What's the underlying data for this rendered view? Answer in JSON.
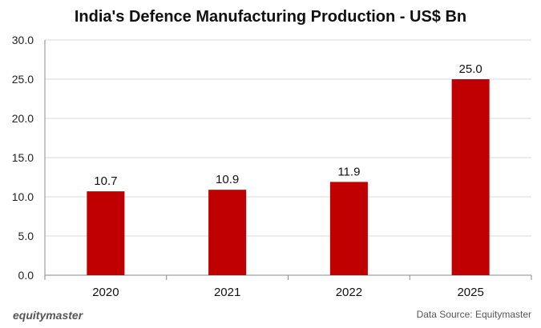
{
  "chart_data": {
    "type": "bar",
    "title": "India's Defence Manufacturing Production - US$ Bn",
    "categories": [
      "2020",
      "2021",
      "2022",
      "2025"
    ],
    "values": [
      10.7,
      10.9,
      11.9,
      25.0
    ],
    "data_labels": [
      "10.7",
      "10.9",
      "11.9",
      "25.0"
    ],
    "y_ticks": [
      "0.0",
      "5.0",
      "10.0",
      "15.0",
      "20.0",
      "25.0",
      "30.0"
    ],
    "ylim": [
      0,
      30
    ],
    "y_step": 5,
    "grid": true,
    "bar_color": "#c00000",
    "xlabel": "",
    "ylabel": ""
  },
  "footer": {
    "brand": "equitymaster",
    "source": "Data Source: Equitymaster"
  }
}
